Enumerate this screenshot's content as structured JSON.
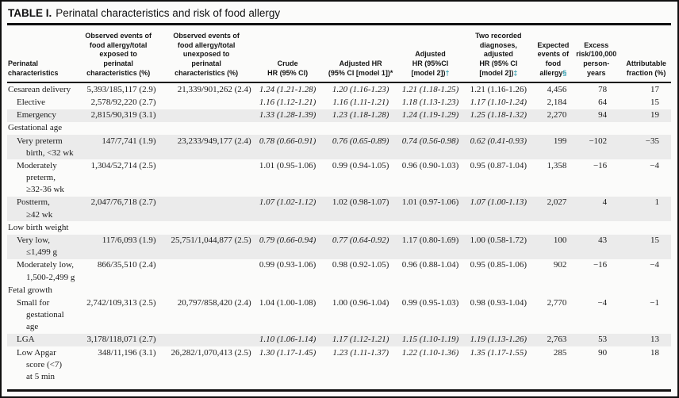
{
  "title": {
    "label": "TABLE I.",
    "text": "Perinatal characteristics and risk of food allergy"
  },
  "colors": {
    "accent_teal": "#2e9bad",
    "row_shade": "#ebebeb",
    "rule_black": "#101010"
  },
  "table": {
    "columns": [
      {
        "id": "perinatal-characteristics",
        "label": "Perinatal\ncharacteristics"
      },
      {
        "id": "observed-exposed",
        "label": "Observed events of\nfood allergy/total\nexposed to\nperinatal\ncharacteristics (%)"
      },
      {
        "id": "observed-unexposed",
        "label": "Observed events of\nfood allergy/total\nunexposed to\nperinatal\ncharacteristics (%)"
      },
      {
        "id": "crude-hr",
        "label": "Crude\nHR (95% CI)"
      },
      {
        "id": "adjusted-hr-model1",
        "label": "Adjusted HR\n(95% CI [model 1])",
        "sup": "*",
        "sup_teal": false
      },
      {
        "id": "adjusted-hr-model2",
        "label": "Adjusted\nHR (95%CI\n[model 2])",
        "sup": "†",
        "sup_teal": true
      },
      {
        "id": "two-diagnoses-hr",
        "label": "Two recorded\ndiagnoses,\nadjusted\nHR (95% CI\n[model 2])",
        "sup": "‡",
        "sup_teal": true
      },
      {
        "id": "expected-events",
        "label": "Expected\nevents of\nfood\nallergy",
        "sup": "§",
        "sup_teal": true
      },
      {
        "id": "excess-risk",
        "label": "Excess\nrisk/100,000\nperson-\nyears"
      },
      {
        "id": "attributable-fraction",
        "label": "Attributable\nfraction (%)"
      }
    ],
    "rows": [
      {
        "type": "data",
        "label": "Cesarean delivery",
        "indent": 0,
        "shaded": false,
        "cells": [
          {
            "t": "5,393/185,117 (2.9)"
          },
          {
            "t": "21,339/901,262 (2.4)"
          },
          {
            "t": "1.24 (1.21-1.28)",
            "i": true
          },
          {
            "t": "1.20 (1.16-1.23)",
            "i": true
          },
          {
            "t": "1.21 (1.18-1.25)",
            "i": true
          },
          {
            "t": "1.21 (1.16-1.26)"
          },
          {
            "t": "4,456"
          },
          {
            "t": "78"
          },
          {
            "t": "17"
          }
        ]
      },
      {
        "type": "data",
        "label": "Elective",
        "indent": 1,
        "shaded": false,
        "cells": [
          {
            "t": "2,578/92,220 (2.7)"
          },
          {
            "t": ""
          },
          {
            "t": "1.16 (1.12-1.21)",
            "i": true
          },
          {
            "t": "1.16 (1.11-1.21)",
            "i": true
          },
          {
            "t": "1.18 (1.13-1.23)",
            "i": true
          },
          {
            "t": "1.17 (1.10-1.24)",
            "i": true
          },
          {
            "t": "2,184"
          },
          {
            "t": "64"
          },
          {
            "t": "15"
          }
        ]
      },
      {
        "type": "data",
        "label": "Emergency",
        "indent": 1,
        "shaded": true,
        "cells": [
          {
            "t": "2,815/90,319 (3.1)"
          },
          {
            "t": ""
          },
          {
            "t": "1.33 (1.28-1.39)",
            "i": true
          },
          {
            "t": "1.23 (1.18-1.28)",
            "i": true
          },
          {
            "t": "1.24 (1.19-1.29)",
            "i": true
          },
          {
            "t": "1.25 (1.18-1.32)",
            "i": true
          },
          {
            "t": "2,270"
          },
          {
            "t": "94"
          },
          {
            "t": "19"
          }
        ]
      },
      {
        "type": "section",
        "label": "Gestational age",
        "indent": 0,
        "shaded": false
      },
      {
        "type": "data",
        "label": "Very preterm\nbirth, <32 wk",
        "indent": 1,
        "shaded": true,
        "cells": [
          {
            "t": "147/7,741 (1.9)"
          },
          {
            "t": "23,233/949,177 (2.4)"
          },
          {
            "t": "0.78 (0.66-0.91)",
            "i": true
          },
          {
            "t": "0.76 (0.65-0.89)",
            "i": true
          },
          {
            "t": "0.74 (0.56-0.98)",
            "i": true
          },
          {
            "t": "0.62 (0.41-0.93)",
            "i": true
          },
          {
            "t": "199"
          },
          {
            "t": "−102"
          },
          {
            "t": "−35"
          }
        ]
      },
      {
        "type": "data",
        "label": "Moderately\npreterm,\n≥32-36 wk",
        "indent": 1,
        "shaded": false,
        "cells": [
          {
            "t": "1,304/52,714 (2.5)"
          },
          {
            "t": ""
          },
          {
            "t": "1.01 (0.95-1.06)"
          },
          {
            "t": "0.99 (0.94-1.05)"
          },
          {
            "t": "0.96 (0.90-1.03)"
          },
          {
            "t": "0.95 (0.87-1.04)"
          },
          {
            "t": "1,358"
          },
          {
            "t": "−16"
          },
          {
            "t": "−4"
          }
        ]
      },
      {
        "type": "data",
        "label": "Postterm,\n≥42 wk",
        "indent": 1,
        "shaded": true,
        "cells": [
          {
            "t": "2,047/76,718 (2.7)"
          },
          {
            "t": ""
          },
          {
            "t": "1.07 (1.02-1.12)",
            "i": true
          },
          {
            "t": "1.02 (0.98-1.07)"
          },
          {
            "t": "1.01 (0.97-1.06)"
          },
          {
            "t": "1.07 (1.00-1.13)",
            "i": true
          },
          {
            "t": "2,027"
          },
          {
            "t": "4"
          },
          {
            "t": "1"
          }
        ]
      },
      {
        "type": "section",
        "label": "Low birth weight",
        "indent": 0,
        "shaded": false
      },
      {
        "type": "data",
        "label": "Very low,\n≤1,499 g",
        "indent": 1,
        "shaded": true,
        "cells": [
          {
            "t": "117/6,093 (1.9)"
          },
          {
            "t": "25,751/1,044,877 (2.5)"
          },
          {
            "t": "0.79 (0.66-0.94)",
            "i": true
          },
          {
            "t": "0.77 (0.64-0.92)",
            "i": true
          },
          {
            "t": "1.17 (0.80-1.69)"
          },
          {
            "t": "1.00 (0.58-1.72)"
          },
          {
            "t": "100"
          },
          {
            "t": "43"
          },
          {
            "t": "15"
          }
        ]
      },
      {
        "type": "data",
        "label": "Moderately low,\n1,500-2,499 g",
        "indent": 1,
        "shaded": false,
        "cells": [
          {
            "t": "866/35,510 (2.4)"
          },
          {
            "t": ""
          },
          {
            "t": "0.99 (0.93-1.06)"
          },
          {
            "t": "0.98 (0.92-1.05)"
          },
          {
            "t": "0.96 (0.88-1.04)"
          },
          {
            "t": "0.95 (0.85-1.06)"
          },
          {
            "t": "902"
          },
          {
            "t": "−16"
          },
          {
            "t": "−4"
          }
        ]
      },
      {
        "type": "section",
        "label": "Fetal growth",
        "indent": 0,
        "shaded": false
      },
      {
        "type": "data",
        "label": "Small for\ngestational\nage",
        "indent": 1,
        "shaded": false,
        "cells": [
          {
            "t": "2,742/109,313 (2.5)"
          },
          {
            "t": "20,797/858,420 (2.4)"
          },
          {
            "t": "1.04 (1.00-1.08)"
          },
          {
            "t": "1.00 (0.96-1.04)"
          },
          {
            "t": "0.99 (0.95-1.03)"
          },
          {
            "t": "0.98 (0.93-1.04)"
          },
          {
            "t": "2,770"
          },
          {
            "t": "−4"
          },
          {
            "t": "−1"
          }
        ]
      },
      {
        "type": "data",
        "label": "LGA",
        "indent": 1,
        "shaded": true,
        "cells": [
          {
            "t": "3,178/118,071 (2.7)"
          },
          {
            "t": ""
          },
          {
            "t": "1.10 (1.06-1.14)",
            "i": true
          },
          {
            "t": "1.17 (1.12-1.21)",
            "i": true
          },
          {
            "t": "1.15 (1.10-1.19)",
            "i": true
          },
          {
            "t": "1.19 (1.13-1.26)",
            "i": true
          },
          {
            "t": "2,763"
          },
          {
            "t": "53"
          },
          {
            "t": "13"
          }
        ]
      },
      {
        "type": "data",
        "label": "Low Apgar\nscore (<7)\nat 5 min",
        "indent": 1,
        "shaded": false,
        "cells": [
          {
            "t": "348/11,196 (3.1)"
          },
          {
            "t": "26,282/1,070,413 (2.5)"
          },
          {
            "t": "1.30 (1.17-1.45)",
            "i": true
          },
          {
            "t": "1.23 (1.11-1.37)",
            "i": true
          },
          {
            "t": "1.22 (1.10-1.36)",
            "i": true
          },
          {
            "t": "1.35 (1.17-1.55)",
            "i": true
          },
          {
            "t": "285"
          },
          {
            "t": "90"
          },
          {
            "t": "18"
          }
        ]
      }
    ]
  }
}
